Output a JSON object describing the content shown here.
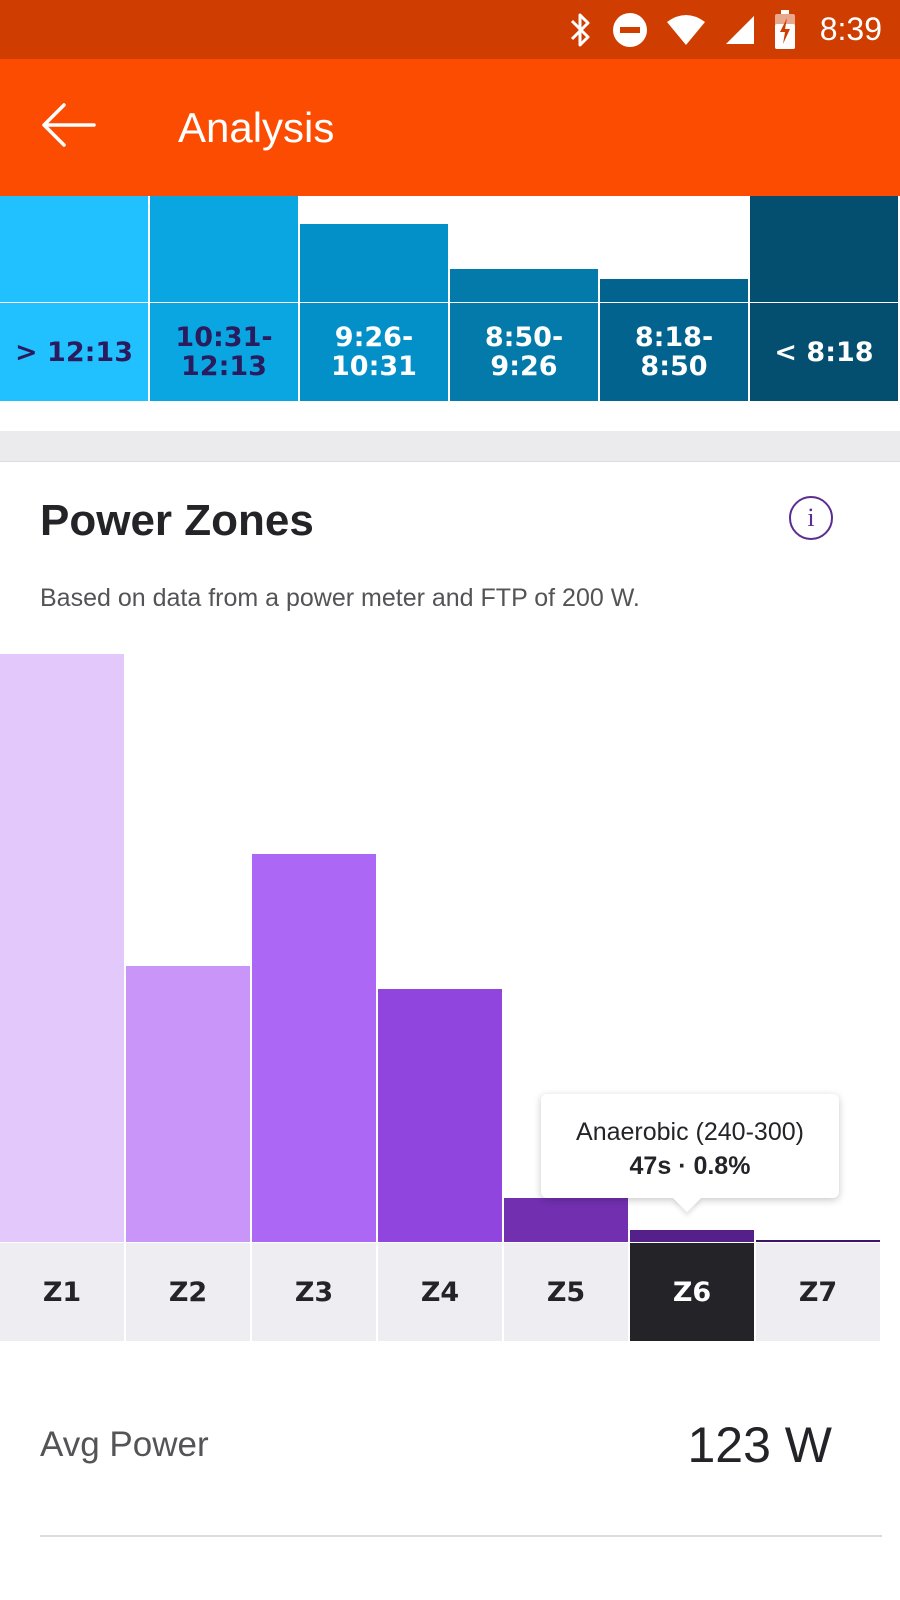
{
  "status_bar": {
    "time": "8:39",
    "icons": [
      "bluetooth-icon",
      "do-not-disturb-icon",
      "wifi-icon",
      "cellular-signal-icon",
      "battery-charging-icon"
    ]
  },
  "app_bar": {
    "title": "Analysis",
    "back_icon": "arrow-left-icon",
    "colors": {
      "background": "#fc4c02",
      "status": "#cf3e00"
    }
  },
  "pace_zones": {
    "zones": [
      {
        "label": "> 12:13",
        "level": 1.0,
        "bar_color": "#21c1ff",
        "cell_color": "#21c1ff",
        "text_color": "#2a1a5e"
      },
      {
        "label": "10:31-\n12:13",
        "level": 1.0,
        "bar_color": "#0aa6e2",
        "cell_color": "#0aa6e2",
        "text_color": "#2a1a5e"
      },
      {
        "label": "9:26-\n10:31",
        "level": 0.74,
        "bar_color": "#0390c8",
        "cell_color": "#0390c8",
        "text_color": "#ffffff"
      },
      {
        "label": "8:50-\n9:26",
        "level": 0.31,
        "bar_color": "#037aaa",
        "cell_color": "#037aaa",
        "text_color": "#ffffff"
      },
      {
        "label": "8:18-\n8:50",
        "level": 0.22,
        "bar_color": "#02648e",
        "cell_color": "#02648e",
        "text_color": "#ffffff"
      },
      {
        "label": "< 8:18",
        "level": 1.0,
        "bar_color": "#044f70",
        "cell_color": "#044f70",
        "text_color": "#ffffff"
      }
    ]
  },
  "power_zones": {
    "title": "Power Zones",
    "info_icon": "info-icon",
    "description": "Based on data from a power meter and FTP of 200 W.",
    "tooltip": {
      "title": "Anaerobic (240-300)",
      "value": "47s · 0.8%"
    },
    "selected_zone": "Z6"
  },
  "chart_data": {
    "type": "bar",
    "categories": [
      "Z1",
      "Z2",
      "Z3",
      "Z4",
      "Z5",
      "Z6",
      "Z7"
    ],
    "values": [
      100,
      47,
      66,
      43,
      7.5,
      2,
      0.4
    ],
    "colors": [
      "#e2c8fb",
      "#c995f8",
      "#ac67f5",
      "#9046de",
      "#7230b1",
      "#56208a",
      "#3c1566"
    ],
    "ylim": [
      0,
      100
    ]
  },
  "stats": {
    "avg_power_label": "Avg Power",
    "avg_power_value": "123 W"
  }
}
